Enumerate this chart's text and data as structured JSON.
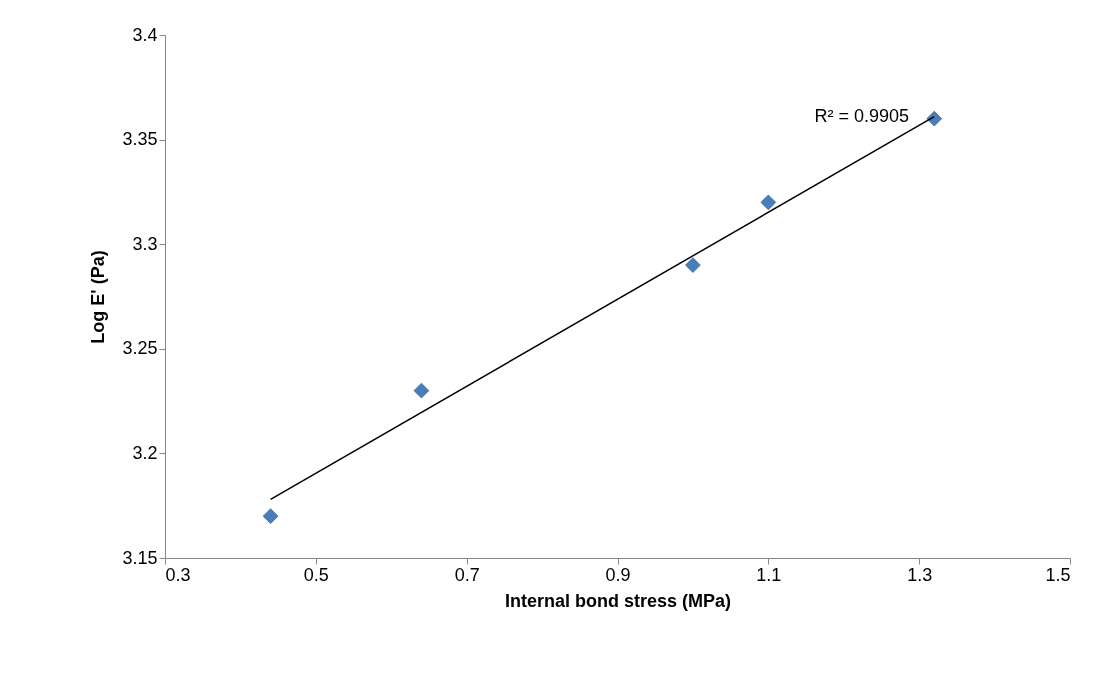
{
  "chart_data": {
    "type": "scatter",
    "xlabel": "Internal bond stress (MPa)",
    "ylabel": "Log E' (Pa)",
    "x": [
      0.44,
      0.64,
      1.0,
      1.1,
      1.32
    ],
    "series": [
      {
        "color": "#4a7ebb",
        "values": [
          3.17,
          3.23,
          3.29,
          3.32,
          3.36
        ],
        "marker": "diamond"
      },
      {
        "type": "line",
        "color": "#000000",
        "x": [
          0.44,
          1.32
        ],
        "values": [
          3.178,
          3.361
        ],
        "marker": "none"
      }
    ],
    "xlim": [
      0.3,
      1.5
    ],
    "xticks": [
      0.3,
      0.5,
      0.7,
      0.9,
      1.1,
      1.3,
      1.5
    ],
    "ylim": [
      3.15,
      3.4
    ],
    "yticks": [
      3.15,
      3.2,
      3.25,
      3.3,
      3.35,
      3.4
    ],
    "grid": false,
    "annotations": [
      "R² = 0.9905"
    ]
  }
}
